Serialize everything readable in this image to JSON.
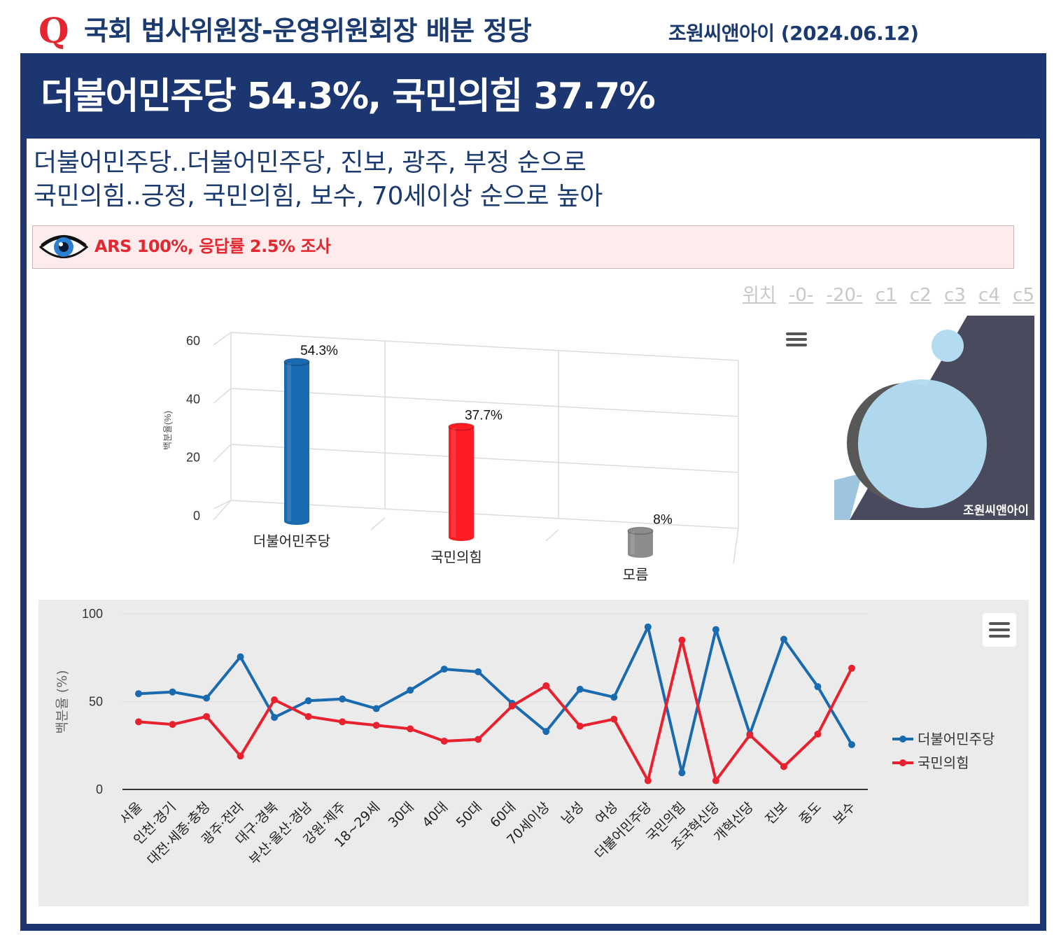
{
  "header": {
    "q_mark": "Q",
    "question": "국회 법사위원장-운영위원회장 배분 정당",
    "source": "조원씨앤아이 (2024.06.12)"
  },
  "headline": "더불어민주당 54.3%, 국민의힘 37.7%",
  "subtitles": [
    "더불어민주당..더불어민주당, 진보, 광주, 부정 순으로",
    "국민의힘..긍정, 국민의힘, 보수, 70세이상 순으로 높아"
  ],
  "method": "ARS 100%, 응답률 2.5% 조사",
  "position_links": [
    "위치",
    "-0-",
    "-20-",
    "c1",
    "c2",
    "c3",
    "c4",
    "c5"
  ],
  "logo_text": "조원씨앤아이",
  "colors": {
    "navy": "#1b3670",
    "accent_red": "#e3262f",
    "democratic": "#1a6ab0",
    "ppp": "#e8212e",
    "unknown": "#8c8c8c"
  },
  "chart_data": [
    {
      "type": "bar",
      "subtype": "3d-cylinder",
      "categories": [
        "더불어민주당",
        "국민의힘",
        "모름"
      ],
      "values": [
        54.3,
        37.7,
        8
      ],
      "data_labels": [
        "54.3%",
        "37.7%",
        "8%"
      ],
      "colors": [
        "#1a6ab0",
        "#ff1d25",
        "#8c8c8c"
      ],
      "ylabel": "백분율(%)",
      "yticks": [
        0,
        20,
        40,
        60
      ],
      "ylim": [
        0,
        60
      ]
    },
    {
      "type": "line",
      "categories": [
        "서울",
        "인천·경기",
        "대전·세종·충청",
        "광주·전라",
        "대구·경북",
        "부산·울산·경남",
        "강원·제주",
        "18~29세",
        "30대",
        "40대",
        "50대",
        "60대",
        "70세이상",
        "남성",
        "여성",
        "더불어민주당",
        "국민의힘",
        "조국혁신당",
        "개혁신당",
        "진보",
        "중도",
        "보수"
      ],
      "series": [
        {
          "name": "더불어민주당",
          "color": "#1a6ab0",
          "values": [
            54.5,
            55.5,
            52,
            75.5,
            41,
            50.5,
            51.5,
            46,
            56.5,
            68.5,
            67,
            49,
            33,
            57,
            52.5,
            92.5,
            9.5,
            91,
            31.5,
            85.5,
            58.5,
            25.5
          ]
        },
        {
          "name": "국민의힘",
          "color": "#e8212e",
          "values": [
            38.5,
            37,
            41.5,
            19,
            51,
            41.5,
            38.5,
            36.5,
            34.5,
            27.5,
            28.5,
            47.5,
            59,
            36,
            40,
            5,
            85,
            5,
            31,
            13,
            31.5,
            69
          ]
        }
      ],
      "ylabel": "백분율 (%)",
      "yticks": [
        0,
        50,
        100
      ],
      "ylim": [
        0,
        100
      ]
    }
  ]
}
